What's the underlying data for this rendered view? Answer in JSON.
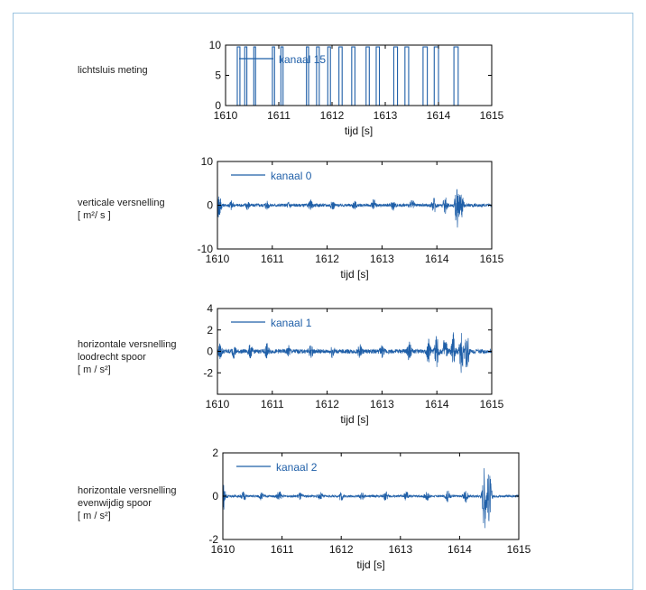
{
  "row_labels": [
    {
      "lines": [
        "lichtsluis meting"
      ]
    },
    {
      "lines": [
        "verticale versnelling",
        "[ m²/ s ]"
      ]
    },
    {
      "lines": [
        "horizontale versnelling",
        "loodrecht spoor",
        "[ m / s²]"
      ]
    },
    {
      "lines": [
        "horizontale versnelling",
        "evenwijdig spoor",
        "[ m / s²]"
      ]
    }
  ],
  "colors": {
    "signal": "#1f5fa8",
    "axis": "#000000",
    "frame": "#9dc4e0"
  },
  "chart_data": [
    {
      "type": "line",
      "xlabel": "tijd [s]",
      "xlim": [
        1610,
        1615
      ],
      "ylim": [
        0,
        10
      ],
      "xticks": [
        "1610",
        "1611",
        "1612",
        "1613",
        "1614",
        "1615"
      ],
      "yticks": [
        "0",
        "5",
        "10"
      ],
      "legend": "kanaal 15",
      "legend_position": "top-left",
      "pulses": [
        {
          "start": 1610.22,
          "end": 1610.27
        },
        {
          "start": 1610.36,
          "end": 1610.4
        },
        {
          "start": 1610.53,
          "end": 1610.56
        },
        {
          "start": 1610.88,
          "end": 1610.92
        },
        {
          "start": 1611.04,
          "end": 1611.08
        },
        {
          "start": 1611.52,
          "end": 1611.56
        },
        {
          "start": 1611.71,
          "end": 1611.76
        },
        {
          "start": 1611.92,
          "end": 1611.97
        },
        {
          "start": 1612.13,
          "end": 1612.19
        },
        {
          "start": 1612.37,
          "end": 1612.43
        },
        {
          "start": 1612.64,
          "end": 1612.7
        },
        {
          "start": 1612.83,
          "end": 1612.89
        },
        {
          "start": 1613.16,
          "end": 1613.23
        },
        {
          "start": 1613.37,
          "end": 1613.44
        },
        {
          "start": 1613.71,
          "end": 1613.79
        },
        {
          "start": 1613.92,
          "end": 1614.0
        },
        {
          "start": 1614.29,
          "end": 1614.37
        }
      ]
    },
    {
      "type": "line",
      "xlabel": "tijd [s]",
      "xlim": [
        1610,
        1615
      ],
      "ylim": [
        -10,
        10
      ],
      "xticks": [
        "1610",
        "1611",
        "1612",
        "1613",
        "1614",
        "1615"
      ],
      "yticks": [
        "-10",
        "0",
        "10"
      ],
      "legend": "kanaal 0",
      "legend_position": "top-left",
      "baseline_amplitude": 0.35,
      "bursts": [
        {
          "t": 1610.03,
          "a": 3.5
        },
        {
          "t": 1610.25,
          "a": 1.0
        },
        {
          "t": 1610.55,
          "a": 0.9
        },
        {
          "t": 1610.9,
          "a": 0.8
        },
        {
          "t": 1611.3,
          "a": 0.7
        },
        {
          "t": 1611.7,
          "a": 0.9
        },
        {
          "t": 1612.1,
          "a": 0.8
        },
        {
          "t": 1612.5,
          "a": 0.8
        },
        {
          "t": 1612.85,
          "a": 1.2
        },
        {
          "t": 1613.2,
          "a": 0.9
        },
        {
          "t": 1613.55,
          "a": 1.0
        },
        {
          "t": 1613.95,
          "a": 1.5
        },
        {
          "t": 1614.15,
          "a": 2.0
        },
        {
          "t": 1614.37,
          "a": 6.0
        },
        {
          "t": 1614.45,
          "a": 2.5
        }
      ]
    },
    {
      "type": "line",
      "xlabel": "tijd [s]",
      "xlim": [
        1610,
        1615
      ],
      "ylim": [
        -4,
        4
      ],
      "xticks": [
        "1610",
        "1611",
        "1612",
        "1613",
        "1614",
        "1615"
      ],
      "yticks": [
        "-2",
        "0",
        "2",
        "4"
      ],
      "legend": "kanaal 1",
      "legend_position": "top-left",
      "baseline_amplitude": 0.2,
      "bursts": [
        {
          "t": 1610.05,
          "a": 0.6
        },
        {
          "t": 1610.3,
          "a": 0.5
        },
        {
          "t": 1610.6,
          "a": 0.5
        },
        {
          "t": 1610.9,
          "a": 0.6
        },
        {
          "t": 1611.3,
          "a": 0.4
        },
        {
          "t": 1611.7,
          "a": 0.5
        },
        {
          "t": 1612.1,
          "a": 0.5
        },
        {
          "t": 1612.6,
          "a": 0.6
        },
        {
          "t": 1613.0,
          "a": 0.5
        },
        {
          "t": 1613.5,
          "a": 0.8
        },
        {
          "t": 1613.85,
          "a": 1.0
        },
        {
          "t": 1614.0,
          "a": 1.5
        },
        {
          "t": 1614.15,
          "a": 1.3
        },
        {
          "t": 1614.3,
          "a": 1.6
        },
        {
          "t": 1614.45,
          "a": 2.3
        },
        {
          "t": 1614.55,
          "a": 1.7
        }
      ]
    },
    {
      "type": "line",
      "xlabel": "tijd [s]",
      "xlim": [
        1610,
        1615
      ],
      "ylim": [
        -2,
        2
      ],
      "xticks": [
        "1610",
        "1611",
        "1612",
        "1613",
        "1614",
        "1615"
      ],
      "yticks": [
        "-2",
        "0",
        "2"
      ],
      "legend": "kanaal 2",
      "legend_position": "top-left",
      "baseline_amplitude": 0.05,
      "bursts": [
        {
          "t": 1610.02,
          "a": 0.6
        },
        {
          "t": 1610.35,
          "a": 0.2
        },
        {
          "t": 1610.65,
          "a": 0.15
        },
        {
          "t": 1610.95,
          "a": 0.25
        },
        {
          "t": 1611.3,
          "a": 0.15
        },
        {
          "t": 1611.65,
          "a": 0.15
        },
        {
          "t": 1612.0,
          "a": 0.2
        },
        {
          "t": 1612.35,
          "a": 0.15
        },
        {
          "t": 1612.75,
          "a": 0.2
        },
        {
          "t": 1613.1,
          "a": 0.2
        },
        {
          "t": 1613.45,
          "a": 0.2
        },
        {
          "t": 1613.8,
          "a": 0.25
        },
        {
          "t": 1614.1,
          "a": 0.3
        },
        {
          "t": 1614.42,
          "a": 1.5
        },
        {
          "t": 1614.5,
          "a": 1.2
        }
      ]
    }
  ]
}
